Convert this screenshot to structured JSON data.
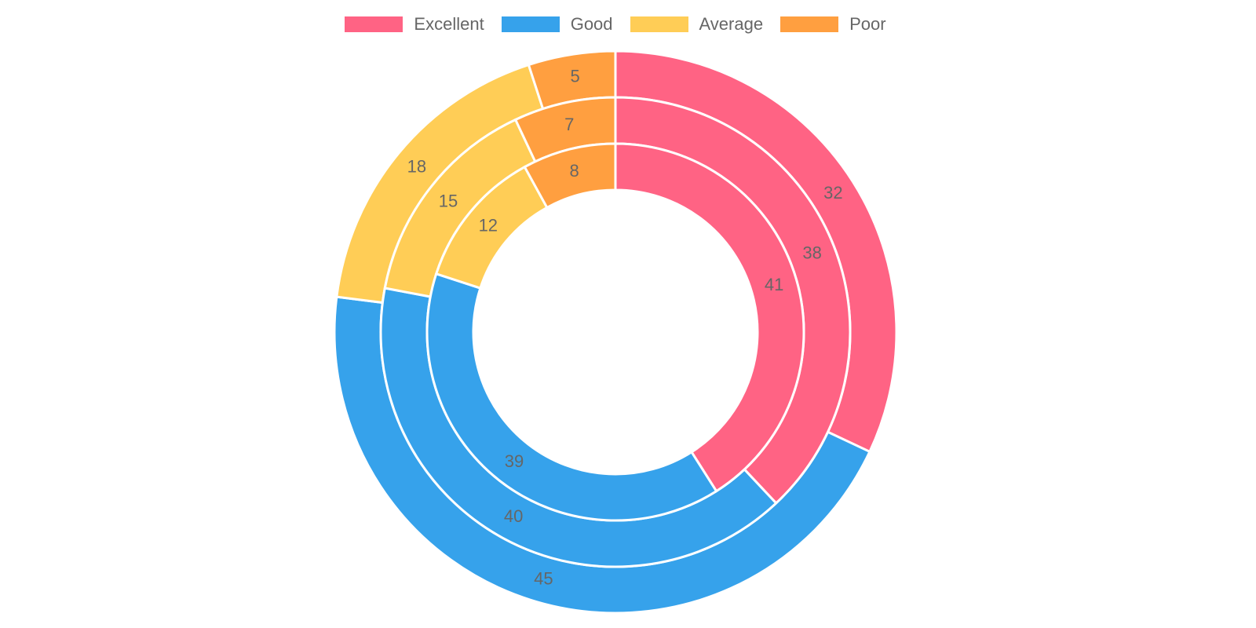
{
  "chart_data": {
    "type": "doughnut",
    "categories": [
      "Excellent",
      "Good",
      "Average",
      "Poor"
    ],
    "colors": [
      "#ff6384",
      "#36a2eb",
      "#ffcd56",
      "#ff9f40"
    ],
    "legend_position": "top",
    "series": [
      {
        "values": [
          32,
          45,
          18,
          5
        ]
      },
      {
        "values": [
          38,
          40,
          15,
          7
        ]
      },
      {
        "values": [
          41,
          39,
          12,
          8
        ]
      }
    ]
  }
}
